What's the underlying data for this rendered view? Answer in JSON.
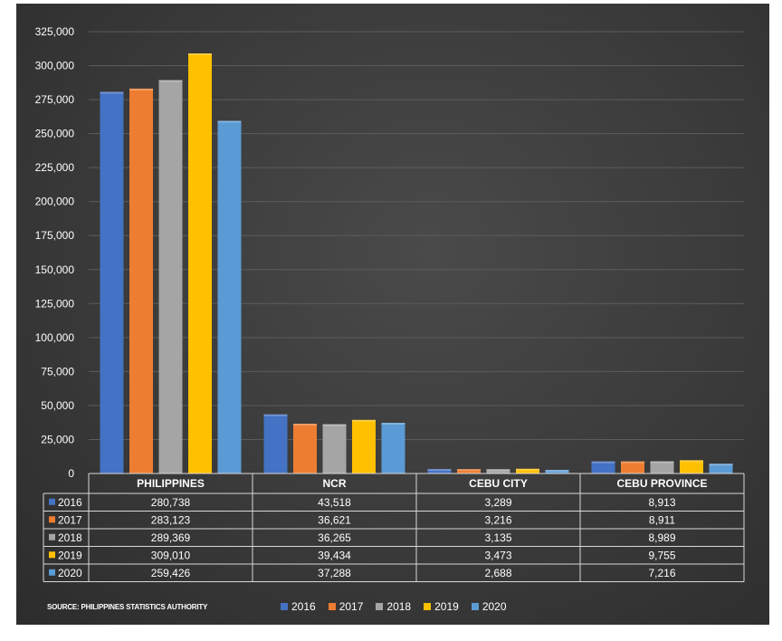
{
  "chart_data": {
    "type": "bar",
    "categories": [
      "PHILIPPINES",
      "NCR",
      "CEBU CITY",
      "CEBU PROVINCE"
    ],
    "series": [
      {
        "name": "2016",
        "color": "#4472c4",
        "values": [
          280738,
          43518,
          3289,
          8913
        ],
        "labels": [
          "280,738",
          "43,518",
          "3,289",
          "8,913"
        ]
      },
      {
        "name": "2017",
        "color": "#ed7d31",
        "values": [
          283123,
          36621,
          3216,
          8911
        ],
        "labels": [
          "283,123",
          "36,621",
          "3,216",
          "8,911"
        ]
      },
      {
        "name": "2018",
        "color": "#a5a5a5",
        "values": [
          289369,
          36265,
          3135,
          8989
        ],
        "labels": [
          "289,369",
          "36,265",
          "3,135",
          "8,989"
        ]
      },
      {
        "name": "2019",
        "color": "#ffc000",
        "values": [
          309010,
          39434,
          3473,
          9755
        ],
        "labels": [
          "309,010",
          "39,434",
          "3,473",
          "9,755"
        ]
      },
      {
        "name": "2020",
        "color": "#5b9bd5",
        "values": [
          259426,
          37288,
          2688,
          7216
        ],
        "labels": [
          "259,426",
          "37,288",
          "2,688",
          "7,216"
        ]
      }
    ],
    "ylim": [
      0,
      325000
    ],
    "yticks": [
      "0",
      "25,000",
      "50,000",
      "75,000",
      "100,000",
      "125,000",
      "150,000",
      "175,000",
      "200,000",
      "225,000",
      "250,000",
      "275,000",
      "300,000",
      "325,000"
    ],
    "grid": true,
    "data_table": true,
    "legend_position": "bottom"
  },
  "source_note": "SOURCE: PHILIPPINES STATISTICS AUTHORITY"
}
